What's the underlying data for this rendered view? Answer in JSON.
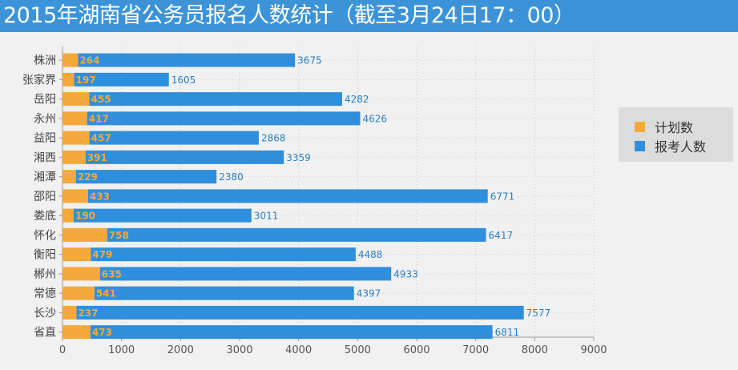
{
  "title": "2015年湖南省公务员报名人数统计（截至3月24日17：00）",
  "colors": {
    "title_bg": "#3c93d8",
    "plan": "#f5a93a",
    "applicants": "#2f8fdc",
    "background": "#f1f1f1",
    "legend_bg": "#dcdcdc"
  },
  "legend": {
    "plan_label": "计划数",
    "applicants_label": "报考人数"
  },
  "chart_data": {
    "type": "bar",
    "orientation": "horizontal",
    "stacked": true,
    "title": "2015年湖南省公务员报名人数统计（截至3月24日17：00）",
    "categories": [
      "株洲",
      "张家界",
      "岳阳",
      "永州",
      "益阳",
      "湘西",
      "湘潭",
      "邵阳",
      "娄底",
      "怀化",
      "衡阳",
      "郴州",
      "常德",
      "长沙",
      "省直"
    ],
    "series": [
      {
        "name": "计划数",
        "values": [
          264,
          197,
          455,
          417,
          457,
          391,
          229,
          433,
          190,
          758,
          479,
          635,
          541,
          237,
          473
        ]
      },
      {
        "name": "报考人数",
        "values": [
          3675,
          1605,
          4282,
          4626,
          2868,
          3359,
          2380,
          6771,
          3011,
          6417,
          4488,
          4933,
          4397,
          7577,
          6811
        ]
      }
    ],
    "xlim": [
      0,
      9000
    ],
    "xticks": [
      0,
      1000,
      2000,
      3000,
      4000,
      5000,
      6000,
      7000,
      8000,
      9000
    ],
    "grid": true,
    "legend_position": "right"
  }
}
